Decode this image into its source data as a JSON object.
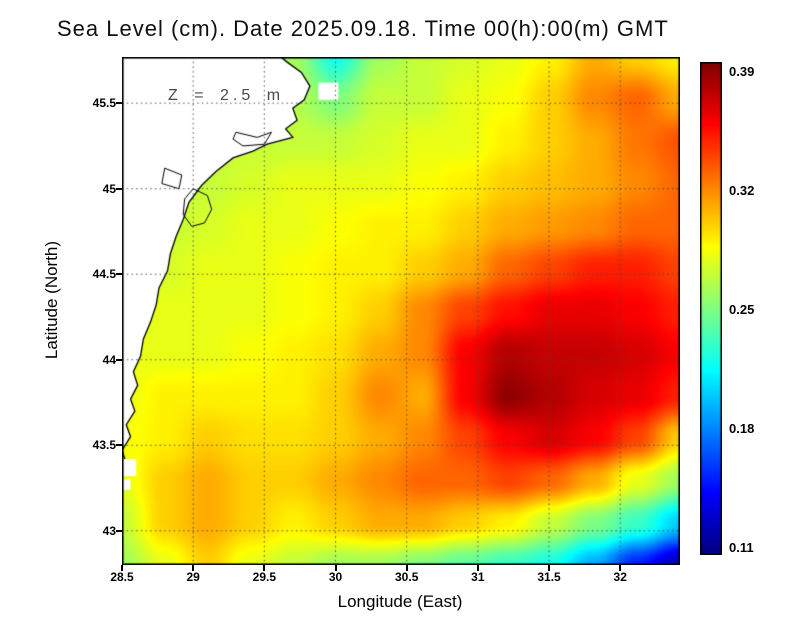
{
  "chart_data": {
    "type": "heatmap",
    "title": "Sea Level (cm). Date 2025.09.18. Time 00(h):00(m) GMT",
    "annotation": "Z = 2.5 m",
    "xlabel": "Longitude (East)",
    "ylabel": "Latitude (North)",
    "x_range": [
      28.5,
      32.42
    ],
    "y_range": [
      42.8,
      45.77
    ],
    "x_tick_labels": [
      "28.5",
      "29",
      "29.5",
      "30",
      "30.5",
      "31",
      "31.5",
      "32"
    ],
    "x_tick_values": [
      28.5,
      29,
      29.5,
      30,
      30.5,
      31,
      31.5,
      32
    ],
    "y_tick_labels": [
      "43",
      "43.5",
      "44",
      "44.5",
      "45",
      "45.5"
    ],
    "y_tick_values": [
      43,
      43.5,
      44,
      44.5,
      45,
      45.5
    ],
    "colormap": "jet",
    "color_range": [
      0.105,
      0.395
    ],
    "colorbar_labels": [
      "0.39",
      "0.32",
      "0.25",
      "0.18",
      "0.11"
    ],
    "colorbar_values": [
      0.39,
      0.32,
      0.25,
      0.18,
      0.11
    ],
    "grid": {
      "lons": [
        28.5,
        28.8,
        29.1,
        29.4,
        29.7,
        30.0,
        30.3,
        30.6,
        30.9,
        31.2,
        31.5,
        31.8,
        32.1,
        32.42
      ],
      "lats": [
        45.77,
        45.55,
        45.3,
        45.05,
        44.8,
        44.55,
        44.3,
        44.05,
        43.8,
        43.55,
        43.3,
        43.05,
        42.8
      ],
      "values": [
        [
          0.26,
          0.26,
          0.26,
          0.27,
          0.26,
          0.22,
          0.26,
          0.27,
          0.275,
          0.28,
          0.29,
          0.31,
          0.3,
          0.29
        ],
        [
          0.26,
          0.26,
          0.26,
          0.27,
          0.265,
          0.25,
          0.27,
          0.27,
          0.28,
          0.285,
          0.3,
          0.32,
          0.33,
          0.31
        ],
        [
          0.27,
          0.27,
          0.27,
          0.27,
          0.27,
          0.27,
          0.275,
          0.28,
          0.28,
          0.29,
          0.3,
          0.31,
          0.325,
          0.335
        ],
        [
          0.27,
          0.27,
          0.27,
          0.275,
          0.28,
          0.28,
          0.28,
          0.285,
          0.29,
          0.3,
          0.305,
          0.31,
          0.32,
          0.33
        ],
        [
          0.27,
          0.27,
          0.275,
          0.28,
          0.28,
          0.285,
          0.29,
          0.29,
          0.3,
          0.31,
          0.315,
          0.32,
          0.33,
          0.33
        ],
        [
          0.275,
          0.275,
          0.28,
          0.28,
          0.285,
          0.29,
          0.29,
          0.3,
          0.31,
          0.33,
          0.34,
          0.35,
          0.35,
          0.34
        ],
        [
          0.27,
          0.28,
          0.28,
          0.28,
          0.285,
          0.29,
          0.3,
          0.32,
          0.34,
          0.355,
          0.365,
          0.365,
          0.36,
          0.35
        ],
        [
          0.28,
          0.28,
          0.28,
          0.285,
          0.29,
          0.295,
          0.31,
          0.32,
          0.36,
          0.38,
          0.375,
          0.375,
          0.37,
          0.36
        ],
        [
          0.28,
          0.29,
          0.29,
          0.29,
          0.29,
          0.3,
          0.32,
          0.31,
          0.36,
          0.39,
          0.38,
          0.37,
          0.365,
          0.35
        ],
        [
          0.285,
          0.29,
          0.3,
          0.295,
          0.295,
          0.3,
          0.31,
          0.32,
          0.34,
          0.36,
          0.37,
          0.36,
          0.34,
          0.3
        ],
        [
          0.28,
          0.3,
          0.31,
          0.3,
          0.3,
          0.31,
          0.32,
          0.33,
          0.33,
          0.34,
          0.33,
          0.31,
          0.28,
          0.26
        ],
        [
          0.27,
          0.3,
          0.31,
          0.3,
          0.29,
          0.3,
          0.31,
          0.31,
          0.3,
          0.29,
          0.27,
          0.25,
          0.23,
          0.2
        ],
        [
          0.26,
          0.28,
          0.3,
          0.28,
          0.27,
          0.26,
          0.26,
          0.25,
          0.24,
          0.23,
          0.22,
          0.19,
          0.15,
          0.12
        ]
      ]
    },
    "land": {
      "coast": [
        [
          29.6,
          45.78
        ],
        [
          29.66,
          45.74
        ],
        [
          29.76,
          45.68
        ],
        [
          29.82,
          45.6
        ],
        [
          29.78,
          45.52
        ],
        [
          29.7,
          45.47
        ],
        [
          29.73,
          45.4
        ],
        [
          29.65,
          45.35
        ],
        [
          29.7,
          45.3
        ],
        [
          29.52,
          45.26
        ],
        [
          29.42,
          45.22
        ],
        [
          29.28,
          45.18
        ],
        [
          29.16,
          45.1
        ],
        [
          29.06,
          45.02
        ],
        [
          28.97,
          44.92
        ],
        [
          28.93,
          44.82
        ],
        [
          28.88,
          44.72
        ],
        [
          28.84,
          44.62
        ],
        [
          28.82,
          44.52
        ],
        [
          28.76,
          44.42
        ],
        [
          28.74,
          44.32
        ],
        [
          28.7,
          44.22
        ],
        [
          28.65,
          44.12
        ],
        [
          28.63,
          44.02
        ],
        [
          28.58,
          43.93
        ],
        [
          28.61,
          43.85
        ],
        [
          28.56,
          43.77
        ],
        [
          28.59,
          43.7
        ],
        [
          28.53,
          43.62
        ],
        [
          28.56,
          43.55
        ],
        [
          28.5,
          43.47
        ],
        [
          28.52,
          43.42
        ],
        [
          28.5,
          43.39
        ]
      ],
      "lakes": [
        [
          [
            29.0,
            45.0
          ],
          [
            29.1,
            44.96
          ],
          [
            29.13,
            44.88
          ],
          [
            29.08,
            44.8
          ],
          [
            28.99,
            44.78
          ],
          [
            28.93,
            44.85
          ],
          [
            28.94,
            44.94
          ]
        ],
        [
          [
            29.3,
            45.33
          ],
          [
            29.45,
            45.3
          ],
          [
            29.55,
            45.33
          ],
          [
            29.5,
            45.26
          ],
          [
            29.35,
            45.25
          ],
          [
            29.28,
            45.29
          ]
        ],
        [
          [
            28.8,
            45.12
          ],
          [
            28.92,
            45.08
          ],
          [
            28.9,
            45.0
          ],
          [
            28.78,
            45.03
          ]
        ]
      ],
      "patches": [
        [
          29.88,
          45.62,
          30.02,
          45.52
        ],
        [
          28.5,
          43.42,
          28.6,
          43.32
        ],
        [
          28.5,
          43.3,
          28.56,
          43.24
        ]
      ]
    }
  }
}
